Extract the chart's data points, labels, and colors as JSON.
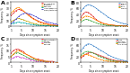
{
  "days": [
    1,
    2,
    3,
    4,
    5,
    6,
    7,
    8,
    9,
    10,
    11,
    12,
    13,
    14,
    15,
    16,
    17,
    18,
    19,
    20
  ],
  "panel_A": {
    "title": "A",
    "ylabel": "Frequency, %",
    "xlabel": "Days since symptom onset",
    "ylim": [
      0,
      40
    ],
    "yticks": [
      0,
      10,
      20,
      30,
      40
    ],
    "series": [
      {
        "label": "Concentration",
        "color": "#e41a1c",
        "data": [
          18,
          22,
          26,
          28,
          27,
          25,
          22,
          19,
          16,
          13,
          11,
          9,
          7,
          6,
          5,
          4,
          3,
          2,
          2,
          1
        ]
      },
      {
        "label": "Headache",
        "color": "#ff8c00",
        "data": [
          22,
          26,
          30,
          31,
          29,
          26,
          22,
          18,
          15,
          12,
          10,
          8,
          6,
          5,
          4,
          3,
          2,
          2,
          1,
          1
        ]
      },
      {
        "label": "Dizziness",
        "color": "#c0a000",
        "data": [
          8,
          10,
          12,
          13,
          12,
          11,
          9,
          8,
          6,
          5,
          4,
          3,
          3,
          2,
          2,
          1,
          1,
          1,
          1,
          0
        ]
      },
      {
        "label": "Limb weakness",
        "color": "#00aaaa",
        "data": [
          4,
          5,
          6,
          7,
          6,
          6,
          5,
          4,
          3,
          3,
          2,
          2,
          1,
          1,
          1,
          1,
          0,
          0,
          0,
          0
        ]
      },
      {
        "label": "Smell/taste loss",
        "color": "#4444cc",
        "data": [
          5,
          8,
          12,
          16,
          19,
          21,
          22,
          21,
          20,
          18,
          16,
          14,
          12,
          10,
          8,
          7,
          6,
          5,
          4,
          3
        ]
      }
    ]
  },
  "panel_B": {
    "title": "B",
    "ylabel": "Frequency, %",
    "xlabel": "Days since symptom onset",
    "ylim": [
      0,
      80
    ],
    "yticks": [
      0,
      20,
      40,
      60,
      80
    ],
    "series": [
      {
        "label": "Fatigue",
        "color": "#4488cc",
        "data": [
          50,
          60,
          68,
          72,
          70,
          66,
          61,
          55,
          49,
          43,
          37,
          31,
          26,
          22,
          18,
          15,
          12,
          10,
          8,
          6
        ]
      },
      {
        "label": "Fever",
        "color": "#dd2222",
        "data": [
          30,
          42,
          48,
          46,
          40,
          32,
          24,
          18,
          14,
          10,
          8,
          6,
          5,
          4,
          3,
          2,
          2,
          1,
          1,
          1
        ]
      },
      {
        "label": "Chills",
        "color": "#44aa44",
        "data": [
          14,
          20,
          23,
          22,
          19,
          15,
          12,
          9,
          7,
          5,
          4,
          3,
          2,
          2,
          1,
          1,
          1,
          0,
          0,
          0
        ]
      },
      {
        "label": "Myalgia",
        "color": "#ff8800",
        "data": [
          22,
          30,
          34,
          33,
          30,
          26,
          21,
          17,
          13,
          10,
          8,
          6,
          5,
          4,
          3,
          2,
          2,
          1,
          1,
          1
        ]
      }
    ]
  },
  "panel_C": {
    "title": "C",
    "ylabel": "Frequency, %",
    "xlabel": "Days since symptom onset",
    "ylim": [
      0,
      20
    ],
    "yticks": [
      0,
      5,
      10,
      15,
      20
    ],
    "series": [
      {
        "label": "Gastrointestinal",
        "color": "#dd2222",
        "data": [
          8,
          10,
          11,
          11,
          10,
          9,
          7,
          6,
          5,
          4,
          3,
          3,
          2,
          2,
          1,
          1,
          1,
          1,
          0,
          0
        ]
      },
      {
        "label": "Nausea",
        "color": "#44aa44",
        "data": [
          5,
          7,
          8,
          8,
          7,
          6,
          5,
          4,
          3,
          3,
          2,
          2,
          1,
          1,
          1,
          0,
          0,
          0,
          0,
          0
        ]
      },
      {
        "label": "Vomiting",
        "color": "#cc44cc",
        "data": [
          3,
          4,
          5,
          5,
          4,
          4,
          3,
          3,
          2,
          2,
          1,
          1,
          1,
          1,
          0,
          0,
          0,
          0,
          0,
          0
        ]
      },
      {
        "label": "Diarrhea",
        "color": "#ff8800",
        "data": [
          5,
          7,
          9,
          10,
          9,
          8,
          7,
          6,
          5,
          4,
          3,
          2,
          2,
          1,
          1,
          1,
          0,
          0,
          0,
          0
        ]
      }
    ]
  },
  "panel_D": {
    "title": "D",
    "ylabel": "Frequency, %",
    "xlabel": "Days since symptom onset",
    "ylim": [
      0,
      80
    ],
    "yticks": [
      0,
      20,
      40,
      60,
      80
    ],
    "series": [
      {
        "label": "Cough",
        "color": "#4488cc",
        "data": [
          38,
          50,
          58,
          62,
          60,
          56,
          51,
          46,
          41,
          36,
          31,
          26,
          22,
          18,
          15,
          12,
          10,
          8,
          6,
          5
        ]
      },
      {
        "label": "Dyspnea",
        "color": "#dd2222",
        "data": [
          15,
          22,
          28,
          32,
          33,
          32,
          29,
          26,
          23,
          20,
          17,
          14,
          11,
          9,
          7,
          6,
          5,
          4,
          3,
          2
        ]
      },
      {
        "label": "Rhinorrhea",
        "color": "#44aa44",
        "data": [
          25,
          32,
          36,
          37,
          35,
          31,
          27,
          23,
          19,
          16,
          13,
          10,
          8,
          6,
          5,
          4,
          3,
          2,
          2,
          1
        ]
      },
      {
        "label": "Sore throat",
        "color": "#ff8800",
        "data": [
          20,
          25,
          27,
          26,
          23,
          19,
          16,
          12,
          10,
          8,
          6,
          5,
          4,
          3,
          2,
          2,
          1,
          1,
          1,
          0
        ]
      }
    ]
  }
}
